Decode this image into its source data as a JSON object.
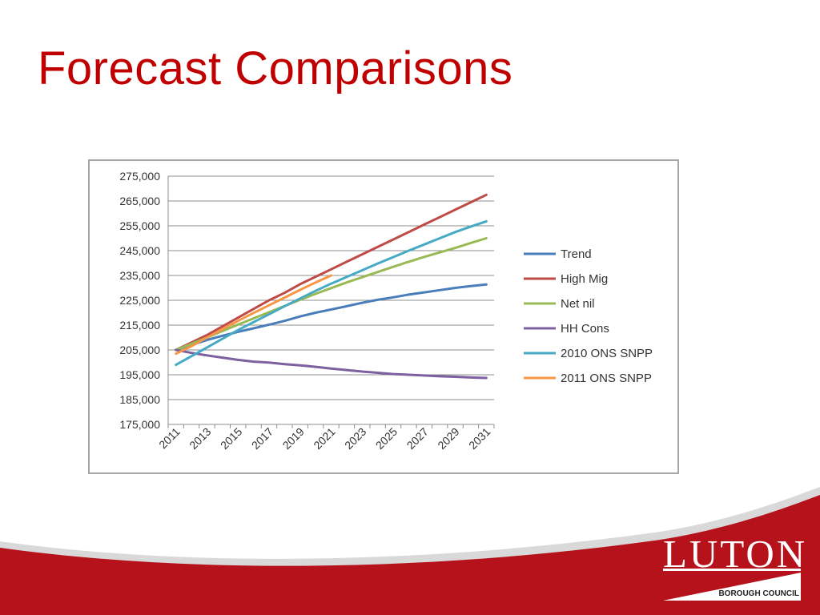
{
  "slide": {
    "title": "Forecast Comparisons"
  },
  "logo": {
    "name": "LUTON",
    "subtitle": "BOROUGH COUNCIL"
  },
  "colors": {
    "title": "#c00000",
    "footer_red": "#b5121b",
    "gridline": "#8c8c8c",
    "frame": "#a6a6a6"
  },
  "chart_data": {
    "type": "line",
    "title": "",
    "xlabel": "",
    "ylabel": "",
    "ylim": [
      175000,
      275000
    ],
    "yticks": [
      175000,
      185000,
      195000,
      205000,
      215000,
      225000,
      235000,
      245000,
      255000,
      265000,
      275000
    ],
    "ytick_labels": [
      "175,000",
      "185,000",
      "195,000",
      "205,000",
      "215,000",
      "225,000",
      "235,000",
      "245,000",
      "255,000",
      "265,000",
      "275,000"
    ],
    "x": [
      2011,
      2012,
      2013,
      2014,
      2015,
      2016,
      2017,
      2018,
      2019,
      2020,
      2021,
      2022,
      2023,
      2024,
      2025,
      2026,
      2027,
      2028,
      2029,
      2030,
      2031
    ],
    "xtick_labels": [
      "2011",
      "2013",
      "2015",
      "2017",
      "2019",
      "2021",
      "2023",
      "2025",
      "2027",
      "2029",
      "2031"
    ],
    "grid": true,
    "legend_position": "right",
    "series": [
      {
        "name": "Trend",
        "color": "#4a7ebb",
        "values": [
          205000,
          207000,
          209000,
          210700,
          212300,
          213700,
          215200,
          216700,
          218500,
          220000,
          221300,
          222600,
          224000,
          225200,
          226200,
          227300,
          228200,
          229100,
          230000,
          230700,
          231400
        ]
      },
      {
        "name": "High Mig",
        "color": "#be4b48",
        "values": [
          205000,
          208000,
          211000,
          214500,
          218000,
          221500,
          225000,
          228000,
          231500,
          234500,
          237500,
          240500,
          243500,
          246500,
          249500,
          252500,
          255500,
          258500,
          261500,
          264500,
          267500
        ]
      },
      {
        "name": "Net nil",
        "color": "#98b954",
        "values": [
          205000,
          207500,
          210000,
          212600,
          215200,
          217700,
          220200,
          222700,
          225200,
          227600,
          229900,
          232200,
          234300,
          236400,
          238500,
          240500,
          242500,
          244300,
          246100,
          248100,
          250000
        ]
      },
      {
        "name": "HH Cons",
        "color": "#7d60a0",
        "values": [
          205000,
          203800,
          202800,
          201900,
          201000,
          200300,
          199900,
          199300,
          198800,
          198200,
          197500,
          196900,
          196300,
          195800,
          195300,
          195000,
          194700,
          194400,
          194200,
          193900,
          193700
        ]
      },
      {
        "name": "2010 ONS SNPP",
        "color": "#46aac5",
        "values": [
          199000,
          202500,
          206000,
          209500,
          213000,
          216200,
          219400,
          222600,
          225700,
          228800,
          231700,
          234400,
          237100,
          239800,
          242400,
          245000,
          247500,
          250000,
          252500,
          254700,
          256800
        ]
      },
      {
        "name": "2011 ONS SNPP",
        "color": "#f79646",
        "values": [
          203500,
          206500,
          210000,
          213400,
          216700,
          219900,
          223000,
          226100,
          229200,
          232200,
          235000,
          null,
          null,
          null,
          null,
          null,
          null,
          null,
          null,
          null,
          null
        ]
      }
    ]
  }
}
